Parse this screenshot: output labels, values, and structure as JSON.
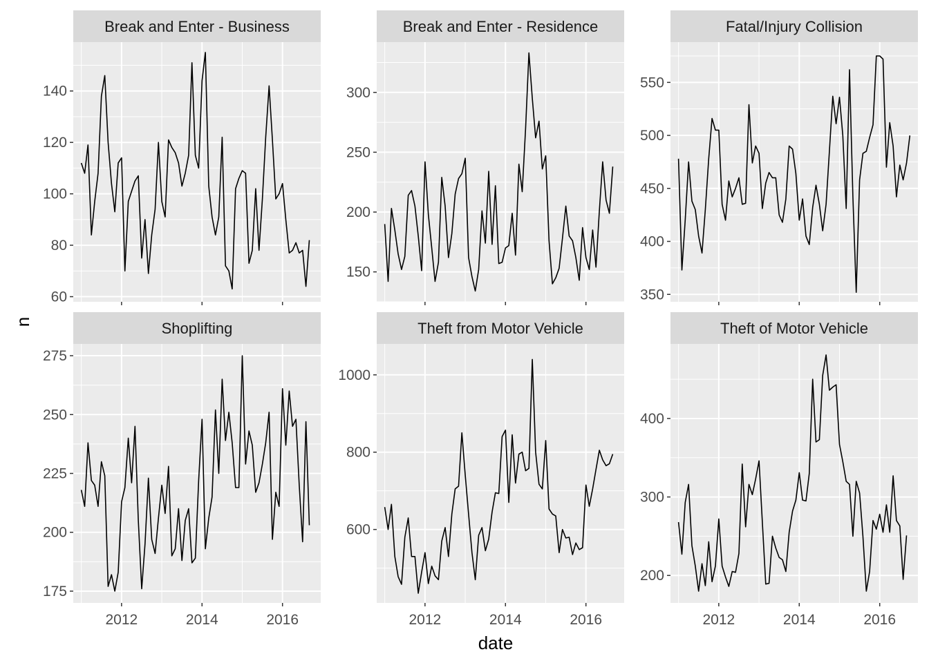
{
  "figure": {
    "xlabel": "date",
    "ylabel": "n"
  },
  "colors": {
    "panel_bg": "#EBEBEB",
    "strip_bg": "#D9D9D9",
    "grid": "#FFFFFF",
    "line": "#000000",
    "tick_text": "#4D4D4D",
    "strip_text": "#1A1A1A"
  },
  "chart_data": [
    {
      "type": "line",
      "title": "Break and Enter - Business",
      "x_ticks": [
        "2012",
        "2014",
        "2016"
      ],
      "y_ticks": [
        60,
        80,
        100,
        120,
        140
      ],
      "ylim": [
        58,
        159
      ],
      "xlim": [
        2010.8,
        2016.95
      ],
      "x_start": 2011.0,
      "x_step": 0.08333,
      "values": [
        112,
        108,
        119,
        84,
        97,
        108,
        138,
        146,
        120,
        104,
        93,
        112,
        114,
        70,
        97,
        101,
        105,
        107,
        75,
        90,
        69,
        84,
        94,
        120,
        97,
        91,
        121,
        118,
        116,
        112,
        103,
        108,
        115,
        151,
        115,
        110,
        144,
        155,
        103,
        91,
        84,
        91,
        122,
        72,
        70,
        63,
        102,
        106,
        109,
        108,
        73,
        78,
        102,
        78,
        98,
        122,
        142,
        121,
        98,
        100,
        104,
        90,
        77,
        78,
        81,
        77,
        78,
        64,
        82
      ]
    },
    {
      "type": "line",
      "title": "Break and Enter - Residence",
      "x_ticks": [
        "2012",
        "2014",
        "2016"
      ],
      "y_ticks": [
        150,
        200,
        250,
        300
      ],
      "ylim": [
        125,
        342
      ],
      "xlim": [
        2010.8,
        2016.95
      ],
      "x_start": 2011.0,
      "x_step": 0.08333,
      "values": [
        190,
        142,
        203,
        185,
        165,
        152,
        163,
        214,
        218,
        205,
        180,
        151,
        242,
        198,
        170,
        142,
        158,
        229,
        205,
        162,
        182,
        215,
        228,
        232,
        245,
        162,
        146,
        134,
        152,
        201,
        174,
        234,
        173,
        222,
        157,
        158,
        170,
        172,
        199,
        164,
        240,
        217,
        270,
        333,
        295,
        262,
        276,
        236,
        247,
        176,
        140,
        145,
        153,
        178,
        205,
        180,
        176,
        162,
        143,
        187,
        162,
        152,
        185,
        154,
        201,
        242,
        210,
        199,
        238
      ]
    },
    {
      "type": "line",
      "title": "Fatal/Injury Collision",
      "x_ticks": [
        "2012",
        "2014",
        "2016"
      ],
      "y_ticks": [
        350,
        400,
        450,
        500,
        550
      ],
      "ylim": [
        343,
        588
      ],
      "xlim": [
        2010.8,
        2016.95
      ],
      "x_start": 2011.0,
      "x_step": 0.08333,
      "values": [
        478,
        373,
        420,
        475,
        438,
        430,
        405,
        389,
        430,
        478,
        516,
        505,
        505,
        435,
        420,
        457,
        442,
        450,
        460,
        435,
        436,
        529,
        474,
        490,
        483,
        431,
        455,
        465,
        460,
        460,
        425,
        418,
        440,
        490,
        487,
        464,
        420,
        440,
        405,
        397,
        432,
        453,
        435,
        410,
        435,
        485,
        537,
        511,
        536,
        500,
        431,
        562,
        442,
        352,
        458,
        483,
        485,
        498,
        510,
        575,
        575,
        572,
        470,
        512,
        490,
        442,
        472,
        458,
        474,
        500
      ]
    },
    {
      "type": "line",
      "title": "Shoplifting",
      "x_ticks": [
        "2012",
        "2014",
        "2016"
      ],
      "y_ticks": [
        175,
        200,
        225,
        250,
        275
      ],
      "ylim": [
        170,
        280
      ],
      "xlim": [
        2010.8,
        2016.95
      ],
      "x_start": 2011.0,
      "x_step": 0.08333,
      "values": [
        218,
        211,
        238,
        222,
        220,
        211,
        230,
        224,
        177,
        182,
        175,
        183,
        213,
        219,
        240,
        221,
        245,
        205,
        176,
        195,
        223,
        197,
        191,
        206,
        220,
        208,
        228,
        190,
        193,
        210,
        188,
        205,
        210,
        187,
        189,
        222,
        248,
        193,
        206,
        215,
        252,
        225,
        265,
        239,
        251,
        238,
        219,
        219,
        275,
        229,
        243,
        237,
        217,
        221,
        229,
        238,
        251,
        197,
        217,
        211,
        261,
        237,
        260,
        245,
        248,
        220,
        196,
        247,
        203
      ]
    },
    {
      "type": "line",
      "title": "Theft from Motor Vehicle",
      "x_ticks": [
        "2012",
        "2014",
        "2016"
      ],
      "y_ticks": [
        600,
        800,
        1000
      ],
      "ylim": [
        410,
        1080
      ],
      "xlim": [
        2010.8,
        2016.95
      ],
      "x_start": 2011.0,
      "x_step": 0.08333,
      "values": [
        658,
        600,
        665,
        530,
        478,
        458,
        580,
        630,
        530,
        530,
        435,
        490,
        540,
        460,
        505,
        480,
        470,
        570,
        605,
        530,
        640,
        705,
        712,
        850,
        740,
        640,
        540,
        470,
        585,
        605,
        545,
        575,
        645,
        695,
        693,
        840,
        857,
        670,
        845,
        720,
        795,
        800,
        752,
        758,
        1040,
        800,
        717,
        705,
        830,
        653,
        640,
        635,
        540,
        600,
        578,
        580,
        535,
        565,
        548,
        553,
        715,
        660,
        705,
        755,
        805,
        780,
        765,
        770,
        795
      ]
    },
    {
      "type": "line",
      "title": "Theft of Motor Vehicle",
      "x_ticks": [
        "2012",
        "2014",
        "2016"
      ],
      "y_ticks": [
        200,
        300,
        400
      ],
      "ylim": [
        165,
        495
      ],
      "xlim": [
        2010.8,
        2016.95
      ],
      "x_start": 2011.0,
      "x_step": 0.08333,
      "values": [
        268,
        227,
        293,
        316,
        238,
        212,
        180,
        215,
        187,
        243,
        192,
        212,
        272,
        212,
        198,
        186,
        205,
        204,
        228,
        342,
        262,
        316,
        303,
        323,
        346,
        268,
        189,
        190,
        250,
        235,
        223,
        220,
        205,
        255,
        282,
        296,
        331,
        296,
        295,
        330,
        450,
        370,
        373,
        455,
        481,
        436,
        440,
        443,
        367,
        345,
        320,
        316,
        250,
        320,
        305,
        250,
        180,
        205,
        270,
        259,
        278,
        255,
        290,
        255,
        327,
        270,
        263,
        195,
        251
      ]
    }
  ]
}
